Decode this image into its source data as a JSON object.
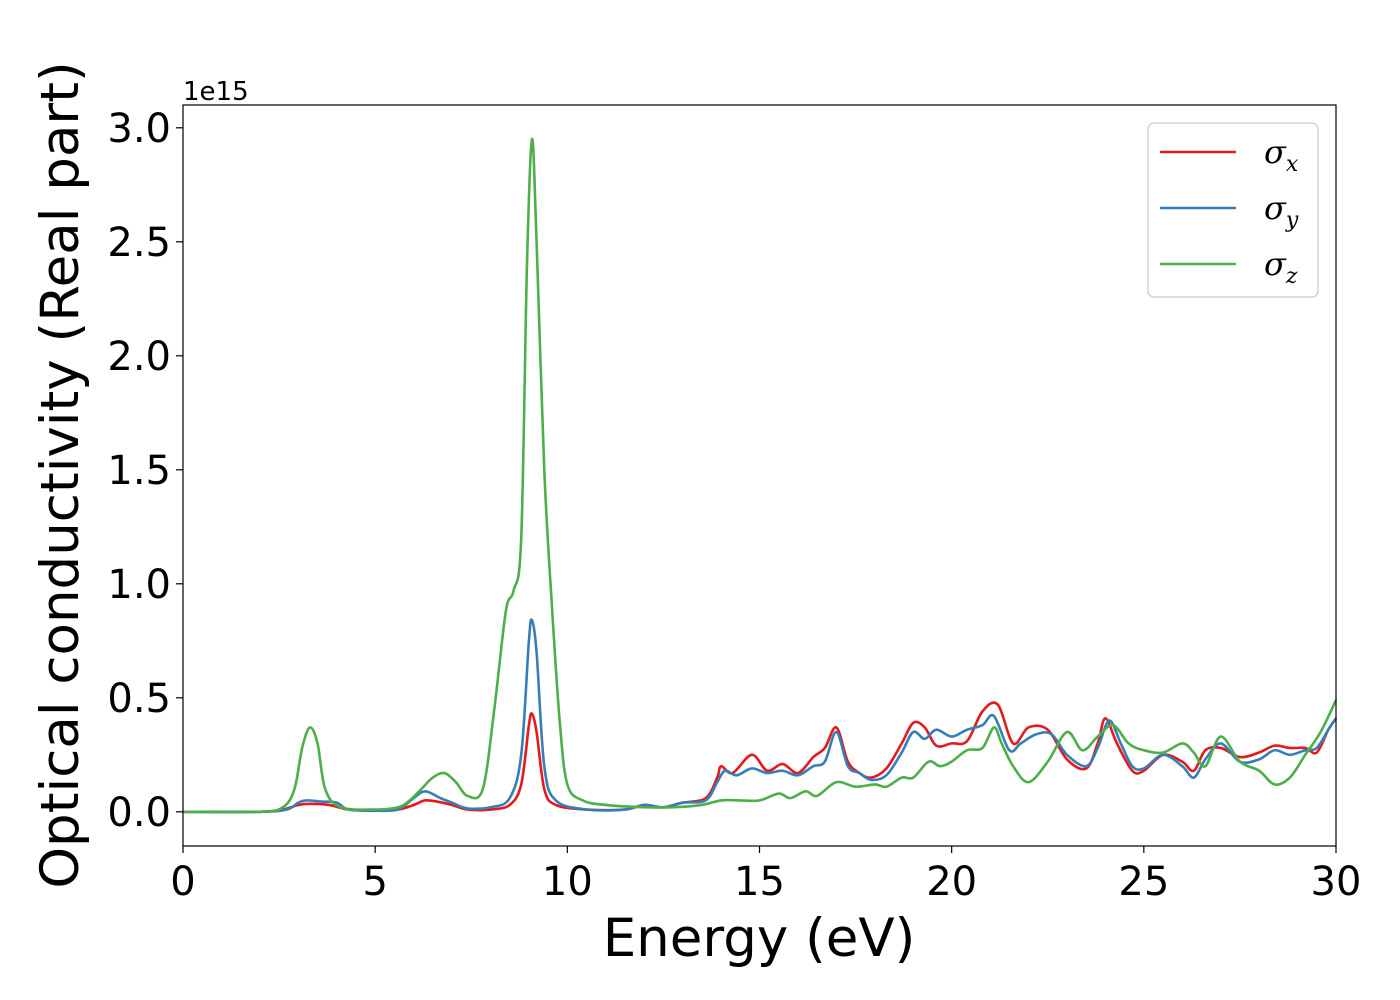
{
  "chart_data": {
    "type": "line",
    "xlabel": "Energy (eV)",
    "ylabel": "Optical conductivity (Real part)",
    "y_offset_label": "1e15",
    "y_scale": 1000000000000000.0,
    "xlim": [
      0,
      30
    ],
    "ylim": [
      -0.15,
      3.1
    ],
    "xticks": [
      0,
      5,
      10,
      15,
      20,
      25,
      30
    ],
    "yticks": [
      0.0,
      0.5,
      1.0,
      1.5,
      2.0,
      2.5,
      3.0
    ],
    "xtick_labels": [
      "0",
      "5",
      "10",
      "15",
      "20",
      "25",
      "30"
    ],
    "ytick_labels": [
      "0.0",
      "0.5",
      "1.0",
      "1.5",
      "2.0",
      "2.5",
      "3.0"
    ],
    "grid": false,
    "legend_position": "top-right",
    "series": [
      {
        "name": "σx",
        "symbol": "σ",
        "subscript": "x",
        "color": "#e41a1c",
        "points": [
          [
            0,
            0
          ],
          [
            2,
            0
          ],
          [
            2.6,
            0.01
          ],
          [
            3,
            0.03
          ],
          [
            3.3,
            0.035
          ],
          [
            3.8,
            0.03
          ],
          [
            4.3,
            0.01
          ],
          [
            5,
            0.005
          ],
          [
            5.6,
            0.01
          ],
          [
            6,
            0.03
          ],
          [
            6.3,
            0.05
          ],
          [
            6.6,
            0.045
          ],
          [
            7,
            0.03
          ],
          [
            7.4,
            0.01
          ],
          [
            8,
            0.01
          ],
          [
            8.5,
            0.03
          ],
          [
            8.8,
            0.12
          ],
          [
            9.0,
            0.38
          ],
          [
            9.08,
            0.43
          ],
          [
            9.2,
            0.35
          ],
          [
            9.4,
            0.1
          ],
          [
            9.7,
            0.03
          ],
          [
            10.5,
            0.01
          ],
          [
            11.5,
            0.01
          ],
          [
            12,
            0.03
          ],
          [
            12.5,
            0.02
          ],
          [
            13,
            0.04
          ],
          [
            13.6,
            0.06
          ],
          [
            13.9,
            0.15
          ],
          [
            14.0,
            0.2
          ],
          [
            14.3,
            0.17
          ],
          [
            14.8,
            0.25
          ],
          [
            15.2,
            0.18
          ],
          [
            15.6,
            0.21
          ],
          [
            16,
            0.17
          ],
          [
            16.4,
            0.24
          ],
          [
            16.7,
            0.28
          ],
          [
            17,
            0.37
          ],
          [
            17.3,
            0.22
          ],
          [
            17.6,
            0.17
          ],
          [
            17.9,
            0.15
          ],
          [
            18.3,
            0.19
          ],
          [
            18.7,
            0.3
          ],
          [
            19,
            0.39
          ],
          [
            19.3,
            0.37
          ],
          [
            19.6,
            0.29
          ],
          [
            20,
            0.3
          ],
          [
            20.4,
            0.31
          ],
          [
            20.8,
            0.44
          ],
          [
            21.2,
            0.47
          ],
          [
            21.6,
            0.3
          ],
          [
            22,
            0.37
          ],
          [
            22.5,
            0.36
          ],
          [
            23,
            0.23
          ],
          [
            23.5,
            0.19
          ],
          [
            23.8,
            0.3
          ],
          [
            24,
            0.41
          ],
          [
            24.3,
            0.3
          ],
          [
            24.7,
            0.18
          ],
          [
            25,
            0.18
          ],
          [
            25.5,
            0.25
          ],
          [
            26,
            0.22
          ],
          [
            26.3,
            0.18
          ],
          [
            26.6,
            0.27
          ],
          [
            27,
            0.28
          ],
          [
            27.5,
            0.24
          ],
          [
            28,
            0.26
          ],
          [
            28.4,
            0.29
          ],
          [
            28.8,
            0.28
          ],
          [
            29.2,
            0.28
          ],
          [
            29.5,
            0.26
          ],
          [
            29.8,
            0.36
          ],
          [
            30,
            0.41
          ]
        ]
      },
      {
        "name": "σy",
        "symbol": "σ",
        "subscript": "y",
        "color": "#377eb8",
        "points": [
          [
            0,
            0
          ],
          [
            2,
            0
          ],
          [
            2.7,
            0.01
          ],
          [
            3,
            0.04
          ],
          [
            3.2,
            0.05
          ],
          [
            3.6,
            0.045
          ],
          [
            4,
            0.04
          ],
          [
            4.3,
            0.01
          ],
          [
            5,
            0.005
          ],
          [
            5.6,
            0.01
          ],
          [
            6,
            0.06
          ],
          [
            6.3,
            0.09
          ],
          [
            6.7,
            0.06
          ],
          [
            7,
            0.04
          ],
          [
            7.4,
            0.015
          ],
          [
            8,
            0.02
          ],
          [
            8.5,
            0.06
          ],
          [
            8.8,
            0.25
          ],
          [
            9.0,
            0.75
          ],
          [
            9.08,
            0.84
          ],
          [
            9.2,
            0.7
          ],
          [
            9.4,
            0.2
          ],
          [
            9.7,
            0.05
          ],
          [
            10.5,
            0.01
          ],
          [
            11.5,
            0.01
          ],
          [
            12,
            0.03
          ],
          [
            12.5,
            0.02
          ],
          [
            13,
            0.04
          ],
          [
            13.6,
            0.05
          ],
          [
            13.9,
            0.13
          ],
          [
            14.1,
            0.18
          ],
          [
            14.4,
            0.16
          ],
          [
            14.8,
            0.19
          ],
          [
            15.2,
            0.17
          ],
          [
            15.6,
            0.18
          ],
          [
            16,
            0.16
          ],
          [
            16.4,
            0.2
          ],
          [
            16.7,
            0.22
          ],
          [
            17,
            0.35
          ],
          [
            17.3,
            0.2
          ],
          [
            17.6,
            0.17
          ],
          [
            17.9,
            0.14
          ],
          [
            18.3,
            0.16
          ],
          [
            18.7,
            0.26
          ],
          [
            19,
            0.35
          ],
          [
            19.3,
            0.32
          ],
          [
            19.6,
            0.36
          ],
          [
            20,
            0.33
          ],
          [
            20.4,
            0.36
          ],
          [
            20.8,
            0.38
          ],
          [
            21.1,
            0.42
          ],
          [
            21.5,
            0.27
          ],
          [
            21.8,
            0.3
          ],
          [
            22.2,
            0.34
          ],
          [
            22.6,
            0.34
          ],
          [
            23,
            0.25
          ],
          [
            23.5,
            0.2
          ],
          [
            23.8,
            0.28
          ],
          [
            24.1,
            0.4
          ],
          [
            24.4,
            0.3
          ],
          [
            24.7,
            0.2
          ],
          [
            25,
            0.19
          ],
          [
            25.5,
            0.25
          ],
          [
            26,
            0.2
          ],
          [
            26.3,
            0.15
          ],
          [
            26.6,
            0.23
          ],
          [
            27,
            0.3
          ],
          [
            27.5,
            0.22
          ],
          [
            28,
            0.23
          ],
          [
            28.4,
            0.27
          ],
          [
            28.8,
            0.25
          ],
          [
            29.2,
            0.27
          ],
          [
            29.5,
            0.28
          ],
          [
            29.8,
            0.36
          ],
          [
            30,
            0.41
          ]
        ]
      },
      {
        "name": "σz",
        "symbol": "σ",
        "subscript": "z",
        "color": "#4daf4a",
        "points": [
          [
            0,
            0
          ],
          [
            2,
            0
          ],
          [
            2.6,
            0.02
          ],
          [
            2.9,
            0.1
          ],
          [
            3.1,
            0.28
          ],
          [
            3.3,
            0.37
          ],
          [
            3.5,
            0.3
          ],
          [
            3.7,
            0.1
          ],
          [
            4.1,
            0.02
          ],
          [
            5,
            0.01
          ],
          [
            5.6,
            0.02
          ],
          [
            5.9,
            0.05
          ],
          [
            6.2,
            0.1
          ],
          [
            6.5,
            0.15
          ],
          [
            6.8,
            0.17
          ],
          [
            7.1,
            0.13
          ],
          [
            7.4,
            0.07
          ],
          [
            7.8,
            0.1
          ],
          [
            8.1,
            0.45
          ],
          [
            8.4,
            0.88
          ],
          [
            8.6,
            0.97
          ],
          [
            8.8,
            1.2
          ],
          [
            8.95,
            2.4
          ],
          [
            9.08,
            2.95
          ],
          [
            9.2,
            2.5
          ],
          [
            9.4,
            1.5
          ],
          [
            9.6,
            0.9
          ],
          [
            9.8,
            0.4
          ],
          [
            10,
            0.12
          ],
          [
            10.4,
            0.05
          ],
          [
            11,
            0.03
          ],
          [
            12,
            0.02
          ],
          [
            12.8,
            0.02
          ],
          [
            13.5,
            0.03
          ],
          [
            14,
            0.05
          ],
          [
            14.5,
            0.05
          ],
          [
            15,
            0.05
          ],
          [
            15.5,
            0.08
          ],
          [
            15.8,
            0.06
          ],
          [
            16.2,
            0.09
          ],
          [
            16.5,
            0.07
          ],
          [
            17,
            0.13
          ],
          [
            17.5,
            0.11
          ],
          [
            18,
            0.12
          ],
          [
            18.3,
            0.11
          ],
          [
            18.7,
            0.15
          ],
          [
            19,
            0.15
          ],
          [
            19.4,
            0.22
          ],
          [
            19.7,
            0.2
          ],
          [
            20,
            0.22
          ],
          [
            20.4,
            0.27
          ],
          [
            20.8,
            0.28
          ],
          [
            21.1,
            0.37
          ],
          [
            21.3,
            0.3
          ],
          [
            21.6,
            0.2
          ],
          [
            22,
            0.13
          ],
          [
            22.5,
            0.22
          ],
          [
            23,
            0.35
          ],
          [
            23.4,
            0.27
          ],
          [
            23.8,
            0.33
          ],
          [
            24.2,
            0.38
          ],
          [
            24.6,
            0.3
          ],
          [
            25,
            0.27
          ],
          [
            25.5,
            0.26
          ],
          [
            26,
            0.3
          ],
          [
            26.3,
            0.26
          ],
          [
            26.6,
            0.2
          ],
          [
            27,
            0.33
          ],
          [
            27.5,
            0.22
          ],
          [
            28,
            0.18
          ],
          [
            28.4,
            0.12
          ],
          [
            28.8,
            0.15
          ],
          [
            29.2,
            0.25
          ],
          [
            29.6,
            0.35
          ],
          [
            30,
            0.49
          ]
        ]
      }
    ]
  }
}
